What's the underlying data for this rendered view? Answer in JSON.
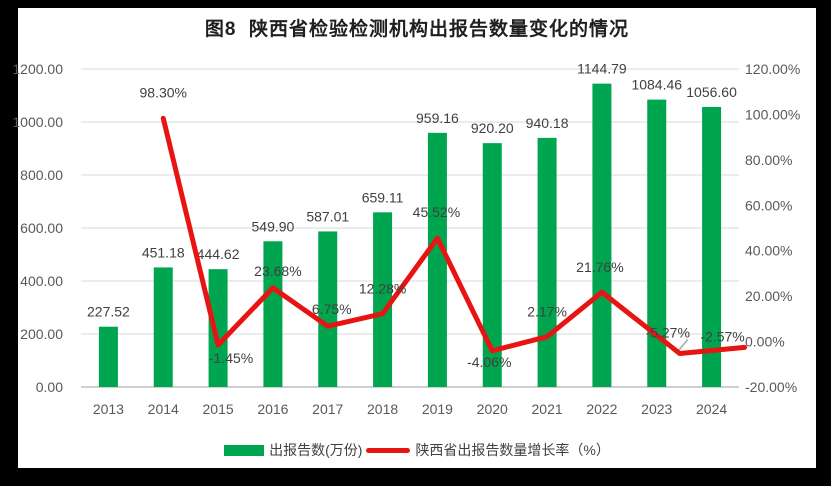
{
  "title": "图8  陕西省检验检测机构出报告数量变化的情况",
  "chart_data": {
    "type": "bar",
    "subtype": "bar+line-combo",
    "title": "图8  陕西省检验检测机构出报告数量变化的情况",
    "categories": [
      "2013",
      "2014",
      "2015",
      "2016",
      "2017",
      "2018",
      "2019",
      "2020",
      "2021",
      "2022",
      "2023",
      "2024"
    ],
    "series": [
      {
        "name": "出报告数(万份)",
        "type": "bar",
        "axis": "left",
        "values": [
          227.52,
          451.18,
          444.62,
          549.9,
          587.01,
          659.11,
          959.16,
          920.2,
          940.18,
          1144.79,
          1084.46,
          1056.6
        ],
        "labels": [
          "227.52",
          "451.18",
          "444.62",
          "549.90",
          "587.01",
          "659.11",
          "959.16",
          "920.20",
          "940.18",
          "1144.79",
          "1084.46",
          "1056.60"
        ]
      },
      {
        "name": "陕西省出报告数量增长率（%）",
        "type": "line",
        "axis": "right",
        "values": [
          null,
          98.3,
          -1.45,
          23.68,
          6.75,
          12.28,
          45.52,
          -4.06,
          2.17,
          21.76,
          -5.27,
          -2.57
        ],
        "labels": [
          null,
          "98.30%",
          "-1.45%",
          "23.68%",
          "6.75%",
          "12.28%",
          "45.52%",
          "-4.06%",
          "2.17%",
          "21.76%",
          "-5.27%",
          "-2.57%"
        ]
      }
    ],
    "left_axis": {
      "min": 0,
      "max": 1200,
      "step": 200,
      "tick_labels": [
        "0.00",
        "200.00",
        "400.00",
        "600.00",
        "800.00",
        "1000.00",
        "1200.00"
      ]
    },
    "right_axis": {
      "min": -20,
      "max": 120,
      "step": 20,
      "tick_labels": [
        "-20.00%",
        "0.00%",
        "20.00%",
        "40.00%",
        "60.00%",
        "80.00%",
        "100.00%",
        "120.00%"
      ]
    },
    "grid": true,
    "legend_position": "bottom"
  },
  "colors": {
    "background": "#000000",
    "panel": "#FFFFFF",
    "bar": "#00A54F",
    "line": "#E81414",
    "grid": "#D9D9D9",
    "axis_line": "#BFBFBF",
    "tick_text": "#595959",
    "label_text": "#404040",
    "leader": "#A6A6A6"
  }
}
